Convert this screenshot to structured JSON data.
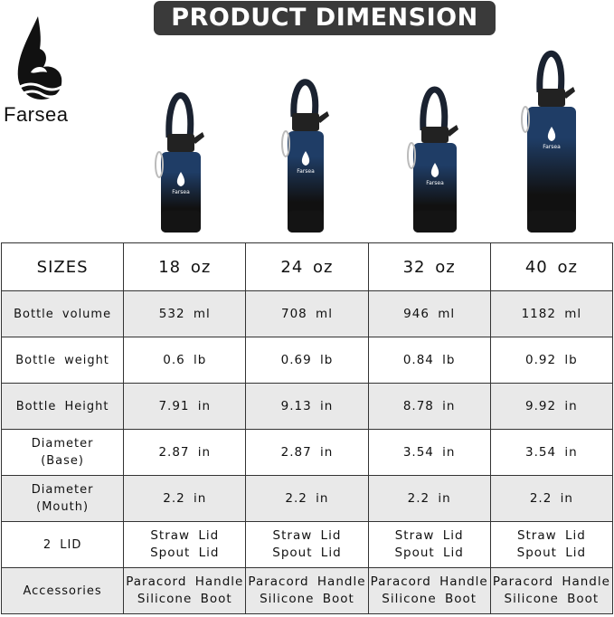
{
  "title": "PRODUCT DIMENSION",
  "brand": {
    "name": "Farsea",
    "logo_icon": "water-drop-wave-logo"
  },
  "bottle_colors": {
    "top": "#1f3d66",
    "bottom": "#111111",
    "handle": "#1a2230"
  },
  "table": {
    "header": [
      "SIZES",
      "18 oz",
      "24 oz",
      "32 oz",
      "40 oz"
    ],
    "rows": [
      {
        "label": "Bottle volume",
        "values": [
          "532 ml",
          "708 ml",
          "946 ml",
          "1182 ml"
        ]
      },
      {
        "label": "Bottle weight",
        "values": [
          "0.6 lb",
          "0.69 lb",
          "0.84 lb",
          "0.92 lb"
        ]
      },
      {
        "label": "Bottle Height",
        "values": [
          "7.91 in",
          "9.13 in",
          "8.78 in",
          "9.92 in"
        ]
      },
      {
        "label": [
          "Diameter",
          "(Base)"
        ],
        "values": [
          "2.87 in",
          "2.87 in",
          "3.54 in",
          "3.54 in"
        ]
      },
      {
        "label": [
          "Diameter",
          "(Mouth)"
        ],
        "values": [
          "2.2 in",
          "2.2 in",
          "2.2 in",
          "2.2 in"
        ]
      },
      {
        "label": "2 LID",
        "values": [
          [
            "Straw Lid",
            "Spout Lid"
          ],
          [
            "Straw Lid",
            "Spout Lid"
          ],
          [
            "Straw Lid",
            "Spout Lid"
          ],
          [
            "Straw Lid",
            "Spout Lid"
          ]
        ]
      },
      {
        "label": "Accessories",
        "values": [
          [
            "Paracord Handle",
            "Silicone Boot"
          ],
          [
            "Paracord Handle",
            "Silicone Boot"
          ],
          [
            "Paracord Handle",
            "Silicone Boot"
          ],
          [
            "Paracord Handle",
            "Silicone Boot"
          ]
        ]
      }
    ]
  }
}
